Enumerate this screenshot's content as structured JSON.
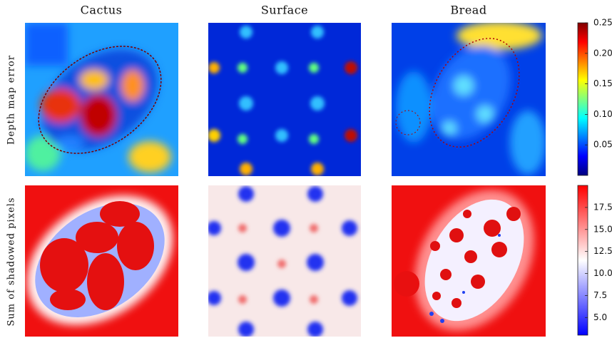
{
  "columns": [
    "Cactus",
    "Surface",
    "Bread"
  ],
  "rows": [
    "Depth map error",
    "Sum of shadowed pixels"
  ],
  "colorbars": [
    {
      "colormap": "jet",
      "lim": [
        0,
        0.25
      ],
      "ticks": [
        0.05,
        {
          "value": 0.1,
          "label": "0.10"
        },
        0.15,
        {
          "value": 0.2,
          "label": "0.20"
        },
        0.25
      ]
    },
    {
      "colormap": "bwr",
      "lim": [
        3,
        20
      ],
      "ticks": [
        {
          "value": 5,
          "label": "5.0"
        },
        7.5,
        {
          "value": 10,
          "label": "10.0"
        },
        12.5,
        {
          "value": 15,
          "label": "15.0"
        },
        17.5
      ]
    }
  ]
}
